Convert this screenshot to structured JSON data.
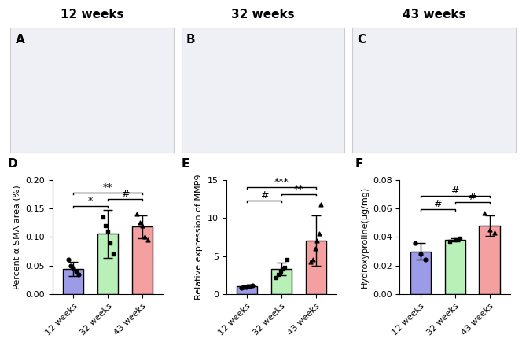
{
  "images": [
    {
      "panel": "A",
      "title": "12 weeks"
    },
    {
      "panel": "B",
      "title": "32 weeks"
    },
    {
      "panel": "C",
      "title": "43 weeks"
    }
  ],
  "chart_data": [
    {
      "type": "bar",
      "panel": "D",
      "ylabel": "Percent α-SMA area (%)",
      "categories": [
        "12 weeks",
        "32 weeks",
        "43 weeks"
      ],
      "values": [
        0.044,
        0.106,
        0.118
      ],
      "errors": [
        0.012,
        0.042,
        0.02
      ],
      "points": [
        [
          0.06,
          0.05,
          0.045,
          0.04,
          0.035
        ],
        [
          0.135,
          0.12,
          0.11,
          0.09,
          0.07
        ],
        [
          0.14,
          0.125,
          0.12,
          0.1,
          0.095
        ]
      ],
      "colors": [
        "#9b9be8",
        "#b8f0b8",
        "#f4a0a0"
      ],
      "ylim": [
        0,
        0.2
      ],
      "yticks": [
        {
          "value": 0,
          "label": "0.00"
        },
        {
          "value": 0.05,
          "label": "0.05"
        },
        {
          "value": 0.1,
          "label": "0.10"
        },
        {
          "value": 0.15,
          "label": "0.15"
        },
        {
          "value": 0.2,
          "label": "0.20"
        }
      ],
      "annotations": [
        {
          "between": [
            "12 weeks",
            "32 weeks"
          ],
          "text": "*"
        },
        {
          "between": [
            "32 weeks",
            "43 weeks"
          ],
          "text": "#"
        },
        {
          "between": [
            "12 weeks",
            "43 weeks"
          ],
          "text": "**"
        }
      ]
    },
    {
      "type": "bar",
      "panel": "E",
      "ylabel": "Relative expression of MMP9",
      "categories": [
        "12 weeks",
        "32 weeks",
        "43 weeks"
      ],
      "values": [
        1.0,
        3.3,
        7.0
      ],
      "errors": [
        0.15,
        0.8,
        3.3
      ],
      "points": [
        [
          0.85,
          0.9,
          0.95,
          1.0,
          1.05,
          1.1
        ],
        [
          2.2,
          2.6,
          3.0,
          3.3,
          3.5,
          4.5
        ],
        [
          4.2,
          4.5,
          6.0,
          7.0,
          8.0,
          11.8
        ]
      ],
      "colors": [
        "#9b9be8",
        "#b8f0b8",
        "#f4a0a0"
      ],
      "ylim": [
        0,
        15
      ],
      "yticks": [
        0,
        5,
        10,
        15
      ],
      "annotations": [
        {
          "between": [
            "12 weeks",
            "32 weeks"
          ],
          "text": "#"
        },
        {
          "between": [
            "32 weeks",
            "43 weeks"
          ],
          "text": "**"
        },
        {
          "between": [
            "12 weeks",
            "43 weeks"
          ],
          "text": "***"
        }
      ]
    },
    {
      "type": "bar",
      "panel": "F",
      "ylabel": "Hydroxyproline(μg/mg)",
      "categories": [
        "12 weeks",
        "32 weeks",
        "43 weeks"
      ],
      "values": [
        0.03,
        0.038,
        0.048
      ],
      "errors": [
        0.006,
        0.001,
        0.007
      ],
      "points": [
        [
          0.036,
          0.028,
          0.024
        ],
        [
          0.037,
          0.038,
          0.039
        ],
        [
          0.057,
          0.045,
          0.043
        ]
      ],
      "colors": [
        "#9b9be8",
        "#b8f0b8",
        "#f4a0a0"
      ],
      "ylim": [
        0,
        0.08
      ],
      "yticks": [
        {
          "value": 0,
          "label": "0.00"
        },
        {
          "value": 0.02,
          "label": "0.02"
        },
        {
          "value": 0.04,
          "label": "0.04"
        },
        {
          "value": 0.06,
          "label": "0.06"
        },
        {
          "value": 0.08,
          "label": "0.08"
        }
      ],
      "annotations": [
        {
          "between": [
            "12 weeks",
            "32 weeks"
          ],
          "text": "#"
        },
        {
          "between": [
            "32 weeks",
            "43 weeks"
          ],
          "text": "#"
        },
        {
          "between": [
            "12 weeks",
            "43 weeks"
          ],
          "text": "#"
        }
      ]
    }
  ]
}
